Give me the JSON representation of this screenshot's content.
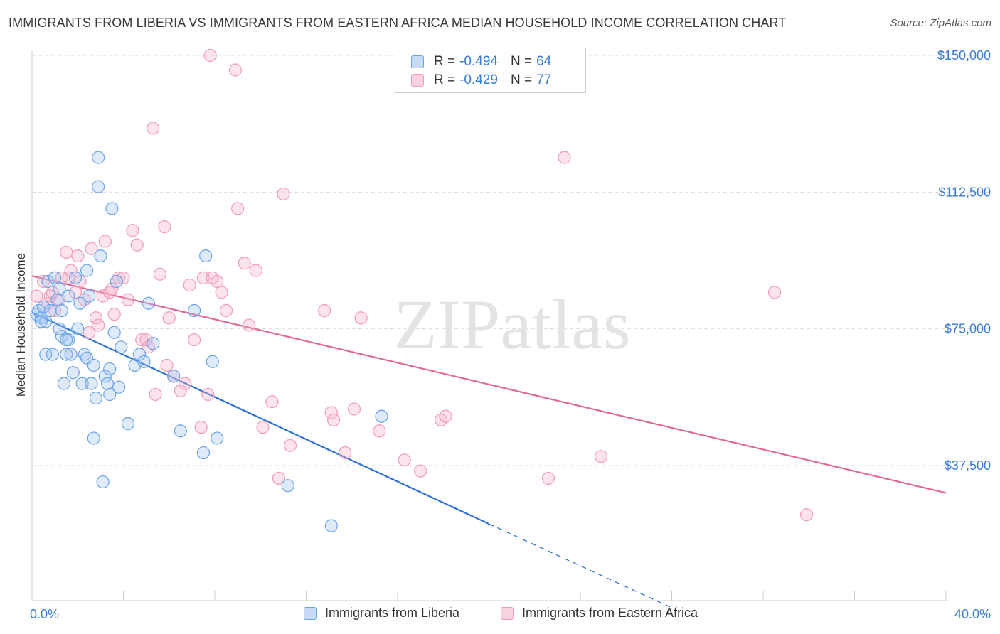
{
  "title": "IMMIGRANTS FROM LIBERIA VS IMMIGRANTS FROM EASTERN AFRICA MEDIAN HOUSEHOLD INCOME CORRELATION CHART",
  "source": "Source: ZipAtlas.com",
  "watermark": "ZIPatlas",
  "legend": {
    "rows": [
      {
        "r_label": "R =",
        "r_value": "-0.494",
        "n_label": "N =",
        "n_value": "64"
      },
      {
        "r_label": "R =",
        "r_value": "-0.429",
        "n_label": "N =",
        "n_value": "77"
      }
    ]
  },
  "bottom_legend": [
    "Immigrants from Liberia",
    "Immigrants from Eastern Africa"
  ],
  "chart_data": {
    "type": "scatter",
    "ylabel": "Median Household Income",
    "x_tick_labels": [
      "0.0%",
      "40.0%"
    ],
    "y_tick_labels": [
      "$150,000",
      "$112,500",
      "$75,000",
      "$37,500"
    ],
    "y_ticks": [
      150000,
      112500,
      75000,
      37500
    ],
    "xlim": [
      0,
      40
    ],
    "ylim": [
      0,
      155000
    ],
    "grid": true,
    "legend_position": "top-center",
    "colors": {
      "liberia": "#6aa3e8",
      "liberia_line": "#2a72d6",
      "eastern_africa": "#f29ab8",
      "eastern_africa_line": "#e0699a"
    },
    "series": [
      {
        "name": "Immigrants from Liberia",
        "color": "#6aa3e8",
        "trend": {
          "x0": 0,
          "y0": 79500,
          "x1": 20,
          "y1": 21500,
          "dashed_to_x": 28,
          "dashed_to_y": -1500
        },
        "points": [
          [
            0.2,
            79
          ],
          [
            0.3,
            80
          ],
          [
            0.4,
            78
          ],
          [
            0.5,
            81
          ],
          [
            0.6,
            77
          ],
          [
            0.6,
            68
          ],
          [
            0.7,
            88
          ],
          [
            0.8,
            80
          ],
          [
            0.9,
            68
          ],
          [
            1.0,
            89
          ],
          [
            1.1,
            83
          ],
          [
            1.2,
            86
          ],
          [
            1.3,
            73
          ],
          [
            1.3,
            80
          ],
          [
            1.4,
            60
          ],
          [
            1.5,
            68
          ],
          [
            1.6,
            84
          ],
          [
            1.6,
            72
          ],
          [
            1.7,
            68
          ],
          [
            1.8,
            63
          ],
          [
            1.9,
            89
          ],
          [
            2.0,
            75
          ],
          [
            2.1,
            82
          ],
          [
            2.2,
            60
          ],
          [
            2.3,
            68
          ],
          [
            2.4,
            67
          ],
          [
            2.4,
            91
          ],
          [
            2.5,
            84
          ],
          [
            2.6,
            60
          ],
          [
            2.7,
            45
          ],
          [
            2.7,
            65
          ],
          [
            2.8,
            56
          ],
          [
            2.9,
            122
          ],
          [
            2.9,
            114
          ],
          [
            3.0,
            95
          ],
          [
            3.1,
            33
          ],
          [
            3.2,
            62
          ],
          [
            3.3,
            60
          ],
          [
            3.4,
            57
          ],
          [
            3.4,
            64
          ],
          [
            3.5,
            108
          ],
          [
            3.6,
            74
          ],
          [
            3.7,
            88
          ],
          [
            3.8,
            59
          ],
          [
            3.9,
            70
          ],
          [
            4.2,
            49
          ],
          [
            4.5,
            65
          ],
          [
            4.7,
            68
          ],
          [
            4.9,
            66
          ],
          [
            5.1,
            82
          ],
          [
            5.3,
            71
          ],
          [
            6.2,
            62
          ],
          [
            6.5,
            47
          ],
          [
            7.1,
            80
          ],
          [
            7.5,
            41
          ],
          [
            7.6,
            95
          ],
          [
            7.9,
            66
          ],
          [
            8.1,
            45
          ],
          [
            11.2,
            32
          ],
          [
            13.1,
            21
          ],
          [
            15.3,
            51
          ],
          [
            0.4,
            77
          ],
          [
            1.2,
            75
          ],
          [
            1.5,
            72
          ]
        ]
      },
      {
        "name": "Immigrants from Eastern Africa",
        "color": "#f29ab8",
        "trend": {
          "x0": 0,
          "y0": 89500,
          "x1": 40,
          "y1": 30000
        },
        "points": [
          [
            0.2,
            84
          ],
          [
            0.5,
            88
          ],
          [
            0.7,
            82
          ],
          [
            0.8,
            84
          ],
          [
            0.9,
            85
          ],
          [
            1.0,
            80
          ],
          [
            1.2,
            83
          ],
          [
            1.3,
            89
          ],
          [
            1.5,
            96
          ],
          [
            1.6,
            89
          ],
          [
            1.7,
            91
          ],
          [
            1.9,
            85
          ],
          [
            2.0,
            95
          ],
          [
            2.1,
            88
          ],
          [
            2.3,
            83
          ],
          [
            2.5,
            74
          ],
          [
            2.6,
            97
          ],
          [
            2.8,
            78
          ],
          [
            2.9,
            76
          ],
          [
            3.1,
            84
          ],
          [
            3.2,
            99
          ],
          [
            3.4,
            85
          ],
          [
            3.5,
            86
          ],
          [
            3.6,
            79
          ],
          [
            3.8,
            89
          ],
          [
            4.0,
            89
          ],
          [
            4.2,
            83
          ],
          [
            4.4,
            102
          ],
          [
            4.6,
            98
          ],
          [
            4.8,
            72
          ],
          [
            5.0,
            72
          ],
          [
            5.1,
            70
          ],
          [
            5.3,
            130
          ],
          [
            5.4,
            57
          ],
          [
            5.6,
            90
          ],
          [
            5.8,
            103
          ],
          [
            5.9,
            65
          ],
          [
            6.0,
            78
          ],
          [
            6.2,
            62
          ],
          [
            6.5,
            58
          ],
          [
            6.7,
            60
          ],
          [
            6.9,
            87
          ],
          [
            7.1,
            72
          ],
          [
            7.4,
            48
          ],
          [
            7.5,
            89
          ],
          [
            7.7,
            57
          ],
          [
            7.9,
            89
          ],
          [
            8.1,
            88
          ],
          [
            8.3,
            85
          ],
          [
            8.5,
            80
          ],
          [
            7.8,
            150
          ],
          [
            8.9,
            146
          ],
          [
            9.3,
            93
          ],
          [
            9.5,
            76
          ],
          [
            9.8,
            91
          ],
          [
            10.1,
            48
          ],
          [
            10.5,
            55
          ],
          [
            10.8,
            34
          ],
          [
            11.0,
            112
          ],
          [
            11.3,
            43
          ],
          [
            12.8,
            80
          ],
          [
            13.1,
            52
          ],
          [
            13.2,
            50
          ],
          [
            13.7,
            41
          ],
          [
            14.1,
            53
          ],
          [
            14.4,
            78
          ],
          [
            15.2,
            47
          ],
          [
            16.3,
            39
          ],
          [
            17.0,
            36
          ],
          [
            17.9,
            50
          ],
          [
            18.1,
            51
          ],
          [
            22.6,
            34
          ],
          [
            23.3,
            122
          ],
          [
            24.9,
            40
          ],
          [
            32.5,
            85
          ],
          [
            33.9,
            24
          ],
          [
            9.0,
            108
          ]
        ]
      }
    ]
  }
}
